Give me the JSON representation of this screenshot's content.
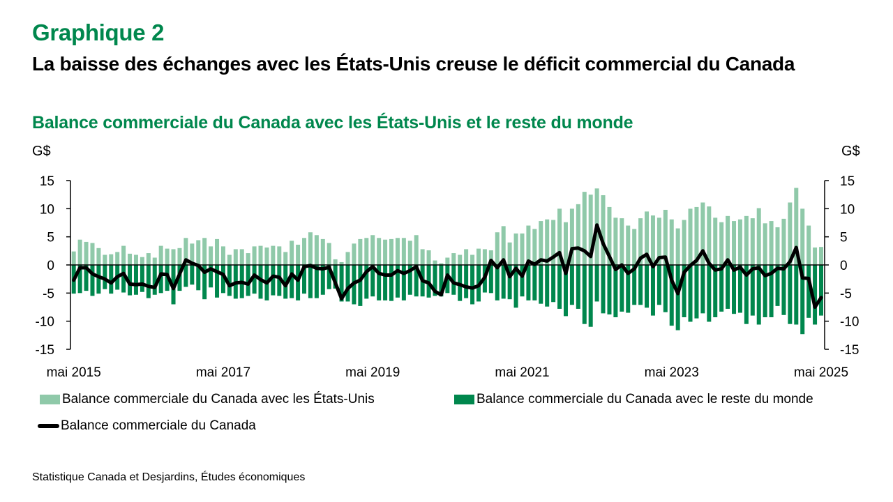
{
  "header": {
    "kicker": "Graphique 2",
    "title": "La baisse des échanges avec les États-Unis creuse le déficit commercial du Canada",
    "subtitle": "Balance commerciale du Canada avec les États-Unis et le reste du monde"
  },
  "colors": {
    "brand_green": "#00874d",
    "us_bar": "#8fc9a9",
    "row_bar": "#00874d",
    "total_line": "#000000"
  },
  "source": "Statistique Canada et Desjardins, Études économiques",
  "chart_data": {
    "type": "bar",
    "title": "Balance commerciale du Canada avec les États-Unis et le reste du monde",
    "ylabel_left": "G$",
    "ylabel_right": "G$",
    "ylim": [
      -15,
      15
    ],
    "yticks": [
      15,
      10,
      5,
      0,
      -5,
      -10,
      -15
    ],
    "x_start": "mai 2015",
    "x_end": "mai 2025",
    "frequency": "monthly",
    "xtick_labels": [
      {
        "index": 0,
        "label": "mai 2015"
      },
      {
        "index": 24,
        "label": "mai 2017"
      },
      {
        "index": 48,
        "label": "mai 2019"
      },
      {
        "index": 72,
        "label": "mai 2021"
      },
      {
        "index": 96,
        "label": "mai 2023"
      },
      {
        "index": 120,
        "label": "mai 2025"
      }
    ],
    "legend_position": "bottom",
    "series": [
      {
        "name": "Balance commerciale du Canada avec les États-Unis",
        "kind": "bar",
        "values": [
          2.4,
          4.5,
          4.1,
          3.9,
          3.0,
          1.8,
          1.9,
          2.3,
          3.4,
          2.0,
          1.8,
          1.4,
          2.1,
          1.3,
          3.4,
          2.9,
          2.8,
          3.0,
          4.8,
          3.8,
          4.4,
          4.8,
          3.3,
          4.6,
          3.3,
          1.8,
          2.8,
          2.8,
          2.1,
          3.3,
          3.4,
          3.1,
          3.4,
          3.3,
          2.3,
          4.3,
          3.6,
          4.8,
          5.8,
          5.3,
          4.6,
          3.9,
          1.0,
          0.5,
          2.3,
          3.8,
          4.6,
          4.8,
          5.3,
          4.8,
          4.5,
          4.6,
          4.8,
          4.8,
          4.3,
          5.3,
          2.8,
          2.6,
          0.8,
          0.3,
          1.3,
          2.1,
          1.8,
          2.8,
          1.8,
          2.9,
          2.8,
          2.6,
          5.8,
          6.9,
          4.0,
          5.6,
          5.6,
          7.0,
          6.4,
          7.8,
          8.1,
          8.0,
          10.0,
          7.6,
          10.0,
          10.8,
          13.0,
          12.5,
          13.6,
          12.4,
          10.3,
          8.4,
          8.3,
          7.0,
          6.4,
          8.3,
          9.5,
          8.8,
          8.4,
          9.8,
          8.1,
          6.5,
          8.0,
          10.0,
          10.3,
          11.1,
          10.4,
          8.4,
          7.6,
          8.7,
          7.8,
          8.1,
          8.7,
          8.3,
          10.1,
          7.4,
          7.8,
          6.7,
          8.2,
          11.1,
          13.7,
          10.0,
          7.0,
          3.1,
          3.2
        ]
      },
      {
        "name": "Balance commerciale du Canada avec le reste du monde",
        "kind": "bar",
        "values": [
          -5.1,
          -5.0,
          -4.6,
          -5.5,
          -5.1,
          -4.3,
          -5.1,
          -4.4,
          -4.9,
          -5.4,
          -5.3,
          -4.8,
          -5.9,
          -5.3,
          -5.0,
          -4.6,
          -7.0,
          -4.6,
          -3.9,
          -3.5,
          -4.5,
          -6.1,
          -4.0,
          -5.8,
          -5.0,
          -5.5,
          -6.0,
          -5.9,
          -5.5,
          -5.1,
          -6.0,
          -6.3,
          -5.4,
          -5.5,
          -6.0,
          -5.9,
          -6.3,
          -5.1,
          -5.9,
          -5.9,
          -5.3,
          -4.3,
          -4.2,
          -6.5,
          -6.5,
          -7.0,
          -7.3,
          -6.0,
          -5.6,
          -6.3,
          -6.3,
          -6.4,
          -5.8,
          -6.3,
          -5.3,
          -5.6,
          -5.6,
          -5.8,
          -5.5,
          -5.6,
          -5.0,
          -5.3,
          -6.4,
          -5.9,
          -7.0,
          -6.5,
          -4.9,
          -5.0,
          -6.3,
          -6.0,
          -6.1,
          -7.6,
          -5.6,
          -6.3,
          -6.3,
          -6.9,
          -7.4,
          -6.6,
          -7.8,
          -9.1,
          -7.1,
          -7.8,
          -10.5,
          -11.0,
          -6.5,
          -8.6,
          -8.8,
          -9.3,
          -8.3,
          -8.5,
          -7.1,
          -7.1,
          -7.6,
          -9.0,
          -7.1,
          -8.4,
          -10.8,
          -11.6,
          -9.3,
          -10.1,
          -9.5,
          -8.6,
          -10.1,
          -9.3,
          -8.3,
          -7.8,
          -8.7,
          -8.5,
          -10.5,
          -9.0,
          -10.6,
          -9.3,
          -9.3,
          -7.3,
          -8.9,
          -10.5,
          -10.6,
          -12.3,
          -9.4,
          -10.6,
          -9.0
        ]
      },
      {
        "name": "Balance commerciale du Canada",
        "kind": "line",
        "values": [
          -2.7,
          -0.5,
          -0.5,
          -1.6,
          -2.1,
          -2.5,
          -3.2,
          -2.1,
          -1.5,
          -3.4,
          -3.5,
          -3.4,
          -3.8,
          -4.0,
          -1.6,
          -1.7,
          -4.2,
          -1.6,
          0.9,
          0.3,
          -0.1,
          -1.3,
          -0.7,
          -1.2,
          -1.7,
          -3.7,
          -3.2,
          -3.1,
          -3.4,
          -1.8,
          -2.6,
          -3.2,
          -2.0,
          -2.2,
          -3.7,
          -1.6,
          -2.7,
          -0.3,
          -0.1,
          -0.6,
          -0.7,
          -0.4,
          -3.2,
          -6.0,
          -4.2,
          -3.2,
          -2.7,
          -1.2,
          -0.3,
          -1.5,
          -1.8,
          -1.8,
          -1.0,
          -1.5,
          -1.0,
          -0.3,
          -2.8,
          -3.2,
          -4.7,
          -5.3,
          -1.8,
          -3.2,
          -3.5,
          -3.9,
          -4.1,
          -3.7,
          -2.2,
          0.8,
          -0.5,
          0.9,
          -2.1,
          -0.6,
          -2.0,
          0.7,
          0.1,
          0.9,
          0.7,
          1.4,
          2.2,
          -1.5,
          2.9,
          3.0,
          2.5,
          1.5,
          7.1,
          3.8,
          1.5,
          -0.8,
          0.0,
          -1.5,
          -0.7,
          1.2,
          1.9,
          -0.3,
          1.3,
          1.4,
          -2.7,
          -5.1,
          -1.3,
          -0.1,
          0.8,
          2.5,
          0.3,
          -0.9,
          -0.7,
          0.9,
          -0.9,
          -0.4,
          -1.8,
          -0.7,
          -0.5,
          -1.9,
          -1.5,
          -0.6,
          -0.7,
          0.6,
          3.1,
          -2.3,
          -2.4,
          -7.5,
          -5.8
        ]
      }
    ]
  }
}
